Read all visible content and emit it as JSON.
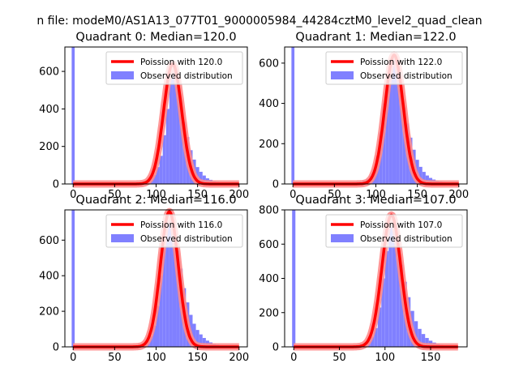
{
  "figure": {
    "suptitle": "n file: modeM0/AS1A13_077T01_9000005984_44284cztM0_level2_quad_clean"
  },
  "colors": {
    "hist": "#8080ff",
    "poisson": "#ff0000",
    "poisson_halo": "#ff8a8a"
  },
  "chart_data": [
    {
      "type": "bar",
      "title": "Quadrant 0: Median=120.0",
      "xlim": [
        -10,
        210
      ],
      "ylim": [
        0,
        730
      ],
      "xticks": [
        0,
        50,
        100,
        150,
        200
      ],
      "yticks": [
        0,
        200,
        400,
        600
      ],
      "legend": {
        "position": "top-right",
        "line_label": "Poission with 120.0",
        "bar_label": "Observed distribution"
      },
      "median": 120.0,
      "poisson_peak": 640,
      "bin_width": 4,
      "spike": {
        "x": 0,
        "value": 730
      },
      "bins": [
        [
          40,
          3
        ],
        [
          44,
          4
        ],
        [
          48,
          5
        ],
        [
          52,
          7
        ],
        [
          56,
          9
        ],
        [
          60,
          8
        ],
        [
          64,
          6
        ],
        [
          68,
          8
        ],
        [
          72,
          7
        ],
        [
          76,
          9
        ],
        [
          80,
          11
        ],
        [
          84,
          15
        ],
        [
          88,
          20
        ],
        [
          92,
          30
        ],
        [
          96,
          48
        ],
        [
          100,
          90
        ],
        [
          104,
          150
        ],
        [
          108,
          260
        ],
        [
          112,
          400
        ],
        [
          116,
          560
        ],
        [
          120,
          600
        ],
        [
          124,
          520
        ],
        [
          128,
          420
        ],
        [
          132,
          330
        ],
        [
          136,
          250
        ],
        [
          140,
          180
        ],
        [
          144,
          130
        ],
        [
          148,
          90
        ],
        [
          152,
          65
        ],
        [
          156,
          45
        ],
        [
          160,
          30
        ],
        [
          164,
          22
        ],
        [
          168,
          15
        ],
        [
          172,
          11
        ],
        [
          176,
          8
        ],
        [
          180,
          6
        ],
        [
          184,
          4
        ],
        [
          188,
          3
        ],
        [
          192,
          2
        ]
      ]
    },
    {
      "type": "bar",
      "title": "Quadrant 1: Median=122.0",
      "xlim": [
        -10,
        210
      ],
      "ylim": [
        0,
        680
      ],
      "xticks": [
        0,
        50,
        100,
        150,
        200
      ],
      "yticks": [
        0,
        200,
        400,
        600
      ],
      "legend": {
        "position": "top-right",
        "line_label": "Poission with 122.0",
        "bar_label": "Observed distribution"
      },
      "median": 122.0,
      "poisson_peak": 640,
      "bin_width": 4,
      "spike": {
        "x": 0,
        "value": 680
      },
      "bins": [
        [
          60,
          4
        ],
        [
          64,
          5
        ],
        [
          68,
          6
        ],
        [
          72,
          8
        ],
        [
          76,
          10
        ],
        [
          80,
          12
        ],
        [
          84,
          18
        ],
        [
          88,
          25
        ],
        [
          92,
          40
        ],
        [
          96,
          70
        ],
        [
          100,
          140
        ],
        [
          104,
          260
        ],
        [
          108,
          400
        ],
        [
          112,
          520
        ],
        [
          116,
          600
        ],
        [
          120,
          640
        ],
        [
          124,
          580
        ],
        [
          128,
          470
        ],
        [
          132,
          380
        ],
        [
          136,
          300
        ],
        [
          140,
          230
        ],
        [
          144,
          170
        ],
        [
          148,
          120
        ],
        [
          152,
          85
        ],
        [
          156,
          60
        ],
        [
          160,
          42
        ],
        [
          164,
          30
        ],
        [
          168,
          22
        ],
        [
          172,
          16
        ],
        [
          176,
          12
        ],
        [
          180,
          9
        ],
        [
          184,
          7
        ],
        [
          188,
          5
        ],
        [
          192,
          4
        ],
        [
          196,
          3
        ],
        [
          200,
          2
        ]
      ]
    },
    {
      "type": "bar",
      "title": "Quadrant 2: Median=116.0",
      "xlim": [
        -10,
        210
      ],
      "ylim": [
        0,
        770
      ],
      "xticks": [
        0,
        50,
        100,
        150,
        200
      ],
      "yticks": [
        0,
        200,
        400,
        600
      ],
      "legend": {
        "position": "top-right",
        "line_label": "Poission with 116.0",
        "bar_label": "Observed distribution"
      },
      "median": 116.0,
      "poisson_peak": 760,
      "bin_width": 4,
      "spike": {
        "x": 0,
        "value": 770
      },
      "bins": [
        [
          60,
          4
        ],
        [
          64,
          5
        ],
        [
          68,
          6
        ],
        [
          72,
          7
        ],
        [
          76,
          9
        ],
        [
          80,
          12
        ],
        [
          84,
          18
        ],
        [
          88,
          30
        ],
        [
          92,
          60
        ],
        [
          96,
          120
        ],
        [
          100,
          230
        ],
        [
          104,
          400
        ],
        [
          108,
          560
        ],
        [
          112,
          700
        ],
        [
          116,
          720
        ],
        [
          120,
          640
        ],
        [
          124,
          540
        ],
        [
          128,
          440
        ],
        [
          132,
          330
        ],
        [
          136,
          250
        ],
        [
          140,
          180
        ],
        [
          144,
          130
        ],
        [
          148,
          95
        ],
        [
          152,
          70
        ],
        [
          156,
          50
        ],
        [
          160,
          35
        ],
        [
          164,
          25
        ],
        [
          168,
          18
        ],
        [
          172,
          12
        ],
        [
          176,
          8
        ],
        [
          180,
          5
        ],
        [
          184,
          3
        ],
        [
          188,
          2
        ]
      ]
    },
    {
      "type": "bar",
      "title": "Quadrant 3: Median=107.0",
      "xlim": [
        -10,
        190
      ],
      "ylim": [
        0,
        800
      ],
      "xticks": [
        0,
        50,
        100,
        150
      ],
      "yticks": [
        0,
        200,
        400,
        600,
        800
      ],
      "legend": {
        "position": "top-right",
        "line_label": "Poission with 107.0",
        "bar_label": "Observed distribution"
      },
      "median": 107.0,
      "poisson_peak": 770,
      "bin_width": 4,
      "spike": {
        "x": 0,
        "value": 800
      },
      "bins": [
        [
          48,
          4
        ],
        [
          52,
          5
        ],
        [
          56,
          6
        ],
        [
          60,
          8
        ],
        [
          64,
          10
        ],
        [
          68,
          12
        ],
        [
          72,
          16
        ],
        [
          76,
          22
        ],
        [
          80,
          35
        ],
        [
          84,
          60
        ],
        [
          88,
          110
        ],
        [
          92,
          230
        ],
        [
          96,
          400
        ],
        [
          100,
          560
        ],
        [
          104,
          700
        ],
        [
          108,
          680
        ],
        [
          112,
          600
        ],
        [
          116,
          480
        ],
        [
          120,
          380
        ],
        [
          124,
          290
        ],
        [
          128,
          210
        ],
        [
          132,
          150
        ],
        [
          136,
          105
        ],
        [
          140,
          75
        ],
        [
          144,
          52
        ],
        [
          148,
          36
        ],
        [
          152,
          25
        ],
        [
          156,
          17
        ],
        [
          160,
          11
        ],
        [
          164,
          7
        ],
        [
          168,
          5
        ],
        [
          172,
          3
        ],
        [
          176,
          2
        ]
      ]
    }
  ]
}
